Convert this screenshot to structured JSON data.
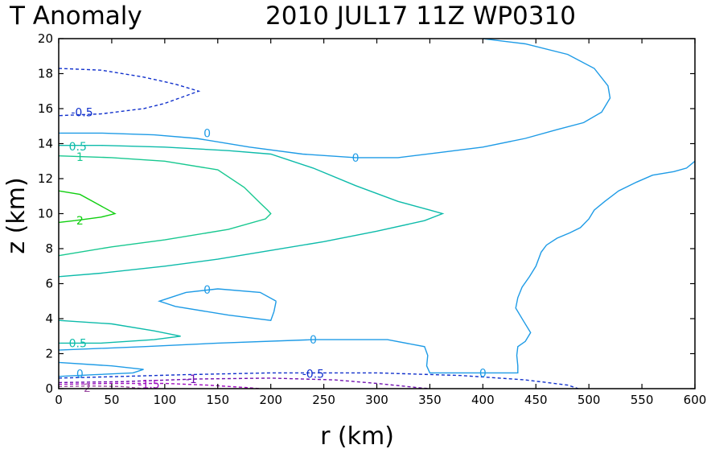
{
  "chart_data": {
    "type": "contour",
    "title_left": "T Anomaly",
    "title_right": "2010 JUL17 11Z   WP0310",
    "xlabel": "r (km)",
    "ylabel": "z (km)",
    "xlim": [
      0,
      600
    ],
    "ylim": [
      0,
      20
    ],
    "xticks": [
      0,
      50,
      100,
      150,
      200,
      250,
      300,
      350,
      400,
      450,
      500,
      550,
      600
    ],
    "yticks": [
      0,
      2,
      4,
      6,
      8,
      10,
      12,
      14,
      16,
      18,
      20
    ],
    "grid": false,
    "contours": [
      {
        "level": "0",
        "color": "#1e9be6",
        "dashed": false,
        "points": [
          [
            400,
            20
          ],
          [
            440,
            19.7
          ],
          [
            480,
            19.1
          ],
          [
            505,
            18.3
          ],
          [
            518,
            17.3
          ],
          [
            520,
            16.6
          ],
          [
            512,
            15.8
          ],
          [
            495,
            15.2
          ],
          [
            470,
            14.8
          ],
          [
            440,
            14.3
          ],
          [
            400,
            13.8
          ],
          [
            360,
            13.5
          ],
          [
            320,
            13.2
          ],
          [
            280,
            13.2
          ],
          [
            230,
            13.4
          ],
          [
            180,
            13.8
          ],
          [
            130,
            14.3
          ],
          [
            90,
            14.5
          ],
          [
            40,
            14.6
          ],
          [
            0,
            14.6
          ]
        ]
      },
      {
        "level": "0",
        "color": "#1e9be6",
        "dashed": false,
        "points": [
          [
            600,
            13.0
          ],
          [
            592,
            12.6
          ],
          [
            580,
            12.4
          ],
          [
            560,
            12.2
          ],
          [
            545,
            11.8
          ],
          [
            528,
            11.3
          ],
          [
            515,
            10.7
          ],
          [
            505,
            10.2
          ],
          [
            500,
            9.7
          ],
          [
            492,
            9.2
          ],
          [
            482,
            8.9
          ],
          [
            470,
            8.6
          ],
          [
            460,
            8.2
          ],
          [
            455,
            7.8
          ],
          [
            450,
            7.0
          ],
          [
            444,
            6.4
          ],
          [
            437,
            5.8
          ],
          [
            433,
            5.2
          ],
          [
            431,
            4.6
          ],
          [
            438,
            3.9
          ],
          [
            445,
            3.2
          ],
          [
            440,
            2.7
          ],
          [
            433,
            2.4
          ],
          [
            432,
            1.9
          ],
          [
            433,
            1.3
          ],
          [
            433,
            0.9
          ],
          [
            350,
            0.9
          ],
          [
            347,
            1.3
          ],
          [
            348,
            1.9
          ],
          [
            345,
            2.4
          ],
          [
            310,
            2.8
          ],
          [
            240,
            2.8
          ],
          [
            150,
            2.6
          ],
          [
            80,
            2.4
          ],
          [
            0,
            2.2
          ]
        ]
      },
      {
        "level": "0",
        "color": "#1e9be6",
        "dashed": false,
        "points": [
          [
            0,
            1.5
          ],
          [
            50,
            1.3
          ],
          [
            80,
            1.1
          ],
          [
            70,
            0.9
          ],
          [
            35,
            0.8
          ],
          [
            0,
            0.7
          ]
        ]
      },
      {
        "level": "0",
        "color": "#1e9be6",
        "dashed": false,
        "points": [
          [
            205,
            5.0
          ],
          [
            190,
            5.5
          ],
          [
            150,
            5.7
          ],
          [
            120,
            5.5
          ],
          [
            95,
            5.0
          ],
          [
            110,
            4.7
          ],
          [
            160,
            4.2
          ],
          [
            200,
            3.9
          ],
          [
            203,
            4.4
          ],
          [
            205,
            5.0
          ]
        ]
      },
      {
        "level": "0.5",
        "color": "#0dbbaa",
        "dashed": false,
        "points": [
          [
            0,
            13.9
          ],
          [
            40,
            13.9
          ],
          [
            100,
            13.8
          ],
          [
            160,
            13.6
          ],
          [
            200,
            13.4
          ],
          [
            240,
            12.6
          ],
          [
            280,
            11.6
          ],
          [
            320,
            10.7
          ],
          [
            350,
            10.2
          ],
          [
            362,
            10.0
          ],
          [
            345,
            9.6
          ],
          [
            300,
            9.0
          ],
          [
            250,
            8.4
          ],
          [
            200,
            7.9
          ],
          [
            150,
            7.4
          ],
          [
            100,
            7.0
          ],
          [
            40,
            6.6
          ],
          [
            0,
            6.4
          ]
        ]
      },
      {
        "level": "0.5",
        "color": "#0dbbaa",
        "dashed": false,
        "points": [
          [
            0,
            3.9
          ],
          [
            50,
            3.7
          ],
          [
            90,
            3.3
          ],
          [
            115,
            3.0
          ],
          [
            90,
            2.8
          ],
          [
            40,
            2.6
          ],
          [
            0,
            2.6
          ]
        ]
      },
      {
        "level": "1",
        "color": "#18c890",
        "dashed": false,
        "points": [
          [
            0,
            13.3
          ],
          [
            50,
            13.2
          ],
          [
            100,
            13.0
          ],
          [
            150,
            12.5
          ],
          [
            175,
            11.5
          ],
          [
            190,
            10.6
          ],
          [
            197,
            10.2
          ],
          [
            200,
            10.0
          ],
          [
            195,
            9.7
          ],
          [
            160,
            9.1
          ],
          [
            100,
            8.5
          ],
          [
            50,
            8.1
          ],
          [
            0,
            7.6
          ]
        ]
      },
      {
        "level": "2",
        "color": "#10cf10",
        "dashed": false,
        "points": [
          [
            0,
            11.3
          ],
          [
            20,
            11.1
          ],
          [
            35,
            10.6
          ],
          [
            53,
            10.0
          ],
          [
            40,
            9.8
          ],
          [
            15,
            9.6
          ],
          [
            0,
            9.5
          ]
        ]
      },
      {
        "level": "-0.5",
        "color": "#1030cc",
        "dashed": true,
        "points": [
          [
            0,
            18.3
          ],
          [
            40,
            18.2
          ],
          [
            80,
            17.8
          ],
          [
            110,
            17.4
          ],
          [
            132,
            17.0
          ],
          [
            100,
            16.3
          ],
          [
            80,
            16.0
          ],
          [
            40,
            15.7
          ],
          [
            0,
            15.6
          ]
        ]
      },
      {
        "level": "-0.5",
        "color": "#1030cc",
        "dashed": true,
        "points": [
          [
            0,
            0.6
          ],
          [
            60,
            0.7
          ],
          [
            120,
            0.8
          ],
          [
            200,
            0.9
          ],
          [
            300,
            0.9
          ],
          [
            380,
            0.75
          ],
          [
            440,
            0.5
          ],
          [
            480,
            0.2
          ],
          [
            490,
            0.0
          ]
        ]
      },
      {
        "level": "-1",
        "color": "#7010b0",
        "dashed": true,
        "points": [
          [
            0,
            0.35
          ],
          [
            60,
            0.4
          ],
          [
            130,
            0.55
          ],
          [
            200,
            0.6
          ],
          [
            260,
            0.5
          ],
          [
            300,
            0.3
          ],
          [
            340,
            0.05
          ],
          [
            350,
            0.0
          ]
        ]
      },
      {
        "level": "-1.5",
        "color": "#a010c0",
        "dashed": true,
        "points": [
          [
            0,
            0.25
          ],
          [
            50,
            0.3
          ],
          [
            100,
            0.3
          ],
          [
            140,
            0.2
          ],
          [
            180,
            0.05
          ],
          [
            190,
            0.0
          ]
        ]
      },
      {
        "level": "-2",
        "color": "#9a4aa0",
        "dashed": true,
        "points": [
          [
            0,
            0.12
          ],
          [
            30,
            0.15
          ],
          [
            60,
            0.12
          ],
          [
            80,
            0.0
          ]
        ]
      }
    ],
    "contour_labels": [
      {
        "text": "-0.5",
        "x": 22,
        "y": 15.8,
        "color": "#1030cc"
      },
      {
        "text": "0",
        "x": 140,
        "y": 14.6,
        "color": "#1e9be6"
      },
      {
        "text": "0",
        "x": 280,
        "y": 13.2,
        "color": "#1e9be6"
      },
      {
        "text": "0.5",
        "x": 18,
        "y": 13.85,
        "color": "#0dbbaa"
      },
      {
        "text": "1",
        "x": 20,
        "y": 13.25,
        "color": "#18c890"
      },
      {
        "text": "2",
        "x": 20,
        "y": 9.6,
        "color": "#10cf10"
      },
      {
        "text": "0",
        "x": 140,
        "y": 5.65,
        "color": "#1e9be6"
      },
      {
        "text": "0.5",
        "x": 18,
        "y": 2.6,
        "color": "#0dbbaa"
      },
      {
        "text": "0",
        "x": 240,
        "y": 2.8,
        "color": "#1e9be6"
      },
      {
        "text": "0",
        "x": 20,
        "y": 0.85,
        "color": "#1e9be6"
      },
      {
        "text": "-0.5",
        "x": 240,
        "y": 0.85,
        "color": "#1030cc"
      },
      {
        "text": "0",
        "x": 400,
        "y": 0.9,
        "color": "#1e9be6"
      },
      {
        "text": "-1",
        "x": 125,
        "y": 0.55,
        "color": "#7010b0"
      },
      {
        "text": "-1.5",
        "x": 85,
        "y": 0.25,
        "color": "#a010c0"
      },
      {
        "text": "-2",
        "x": 25,
        "y": 0.05,
        "color": "#9a4aa0"
      }
    ]
  }
}
